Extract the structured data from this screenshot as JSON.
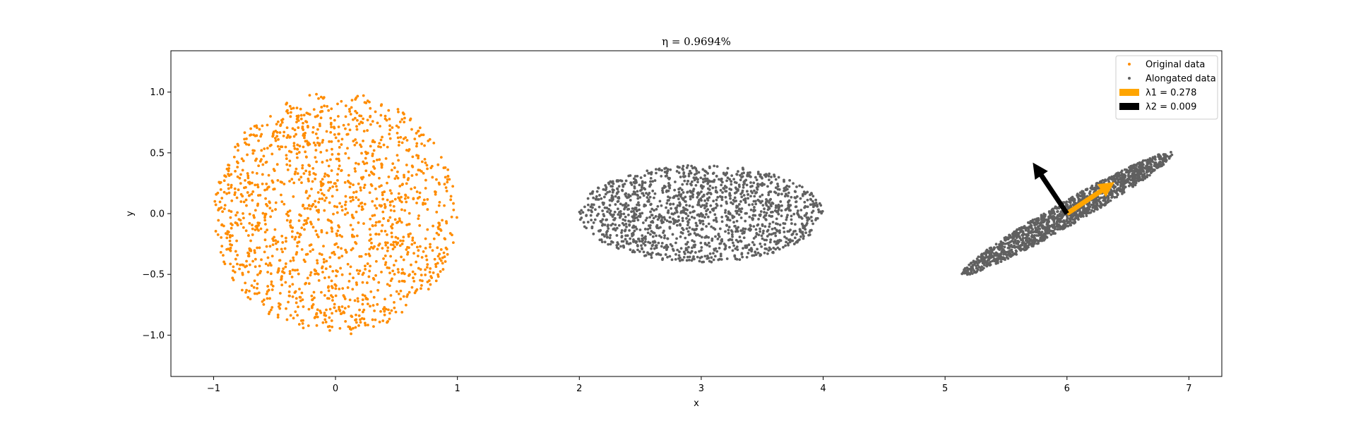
{
  "chart_data": {
    "type": "scatter",
    "title": "η = 0.9694%",
    "xlabel": "x",
    "ylabel": "y",
    "xlim": [
      -1.35,
      7.27
    ],
    "ylim": [
      -1.34,
      1.34
    ],
    "x_ticks": [
      -1,
      0,
      1,
      2,
      3,
      4,
      5,
      6,
      7
    ],
    "x_tick_labels": [
      "−1",
      "0",
      "1",
      "2",
      "3",
      "4",
      "5",
      "6",
      "7"
    ],
    "y_ticks": [
      -1.0,
      -0.5,
      0.0,
      0.5,
      1.0
    ],
    "y_tick_labels": [
      "−1.0",
      "−0.5",
      "0.0",
      "0.5",
      "1.0"
    ],
    "grid": false,
    "legend_position": "top-right",
    "legend": [
      {
        "label": "Original data",
        "color": "#ff8c00",
        "marker": "point"
      },
      {
        "label": "Alongated data",
        "color": "#606060",
        "marker": "point"
      },
      {
        "label": "λ1 = 0.278",
        "color": "#ffa500",
        "marker": "patch"
      },
      {
        "label": "λ2 = 0.009",
        "color": "#000000",
        "marker": "patch"
      }
    ],
    "series": [
      {
        "name": "Original data",
        "shape": "disk",
        "color": "#ff8c00",
        "center": [
          0,
          0
        ],
        "radius": 1.0,
        "count": 1500
      },
      {
        "name": "Alongated data",
        "shape": "ellipse",
        "color": "#606060",
        "center": [
          3,
          0
        ],
        "semi_axes": [
          1.0,
          0.4
        ],
        "count": 1500
      },
      {
        "name": "Alongated data",
        "shape": "rotated-ellipse",
        "color": "#606060",
        "center": [
          6,
          0
        ],
        "semi_axes": [
          1.0,
          0.1
        ],
        "rotation_deg": 30,
        "count": 1500
      }
    ],
    "arrows": [
      {
        "name": "λ1",
        "color": "#ffa500",
        "from": [
          6.0,
          0.0
        ],
        "to": [
          6.39,
          0.26
        ]
      },
      {
        "name": "λ2",
        "color": "#000000",
        "from": [
          6.0,
          0.0
        ],
        "to": [
          5.72,
          0.42
        ]
      }
    ]
  }
}
